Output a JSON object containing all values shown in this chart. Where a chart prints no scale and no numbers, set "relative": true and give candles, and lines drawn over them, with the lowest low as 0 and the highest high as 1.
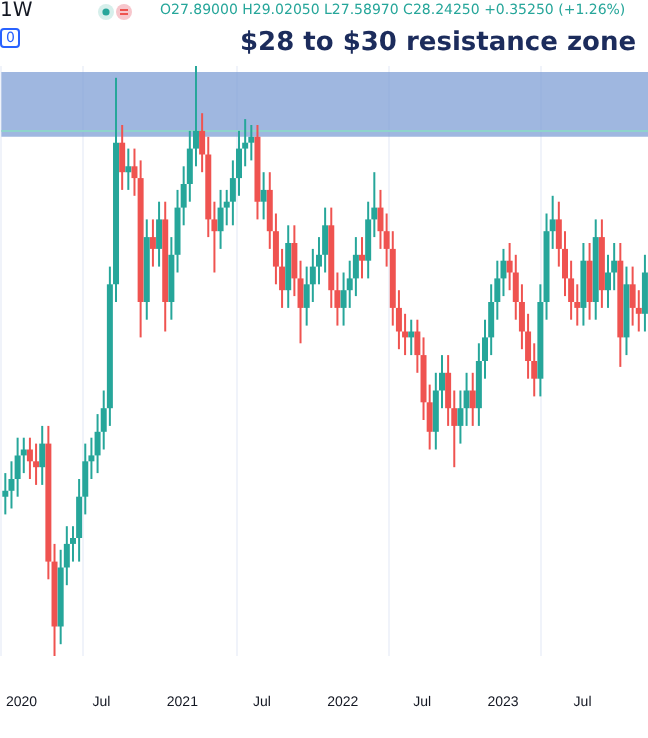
{
  "chart_data": {
    "type": "candlestick",
    "relative": true,
    "title": "$28 to $30 resistance zone",
    "annotations": [
      "1W",
      "O27.89000 H29.02050 L27.58970 C28.24250 +0.35250 (+1.26%)",
      "0"
    ],
    "x": [
      "2019-11-25",
      "2019-12-09",
      "2019-12-23",
      "2020-01-06",
      "2020-01-20",
      "2020-02-03",
      "2020-02-17",
      "2020-03-02",
      "2020-03-16",
      "2020-03-30",
      "2020-04-13",
      "2020-04-27",
      "2020-05-11",
      "2020-05-25",
      "2020-06-08",
      "2020-06-22",
      "2020-07-06",
      "2020-07-20",
      "2020-08-03",
      "2020-08-17",
      "2020-08-31",
      "2020-09-14",
      "2020-09-28",
      "2020-10-12",
      "2020-10-26",
      "2020-11-09",
      "2020-11-23",
      "2020-12-07",
      "2020-12-21",
      "2021-01-04",
      "2021-01-18",
      "2021-02-01",
      "2021-02-15",
      "2021-03-01",
      "2021-03-15",
      "2021-03-29",
      "2021-04-12",
      "2021-04-26",
      "2021-05-10",
      "2021-05-24",
      "2021-06-07",
      "2021-06-21",
      "2021-07-05",
      "2021-07-19",
      "2021-08-02",
      "2021-08-16",
      "2021-08-30",
      "2021-09-13",
      "2021-09-27",
      "2021-10-11",
      "2021-10-25",
      "2021-11-08",
      "2021-11-22",
      "2021-12-06",
      "2021-12-20",
      "2022-01-03",
      "2022-01-17",
      "2022-01-31",
      "2022-02-14",
      "2022-02-28",
      "2022-03-14",
      "2022-03-28",
      "2022-04-11",
      "2022-04-25",
      "2022-05-09",
      "2022-05-23",
      "2022-06-06",
      "2022-06-20",
      "2022-07-04",
      "2022-07-18",
      "2022-08-01",
      "2022-08-15",
      "2022-08-29",
      "2022-09-12",
      "2022-09-26",
      "2022-10-10",
      "2022-10-24",
      "2022-11-07",
      "2022-11-21",
      "2022-12-05",
      "2022-12-19",
      "2023-01-02",
      "2023-01-16",
      "2023-01-30",
      "2023-02-13",
      "2023-02-27",
      "2023-03-13",
      "2023-03-27",
      "2023-04-10",
      "2023-04-24",
      "2023-05-08",
      "2023-05-22",
      "2023-06-05",
      "2023-06-19",
      "2023-07-03",
      "2023-07-17",
      "2023-07-31",
      "2023-08-14",
      "2023-08-28",
      "2023-09-11",
      "2023-09-25",
      "2023-10-09",
      "2023-10-23",
      "2023-11-06",
      "2023-11-20"
    ],
    "ohlc": [
      [
        0.27,
        0.31,
        0.24,
        0.28
      ],
      [
        0.28,
        0.33,
        0.25,
        0.3
      ],
      [
        0.3,
        0.37,
        0.27,
        0.34
      ],
      [
        0.34,
        0.37,
        0.31,
        0.35
      ],
      [
        0.35,
        0.37,
        0.3,
        0.33
      ],
      [
        0.33,
        0.36,
        0.29,
        0.32
      ],
      [
        0.32,
        0.39,
        0.29,
        0.36
      ],
      [
        0.36,
        0.39,
        0.13,
        0.16
      ],
      [
        0.16,
        0.19,
        0,
        0.05
      ],
      [
        0.05,
        0.18,
        0.02,
        0.15
      ],
      [
        0.15,
        0.22,
        0.12,
        0.19
      ],
      [
        0.19,
        0.22,
        0.16,
        0.2
      ],
      [
        0.2,
        0.3,
        0.16,
        0.27
      ],
      [
        0.27,
        0.36,
        0.24,
        0.33
      ],
      [
        0.33,
        0.37,
        0.3,
        0.34
      ],
      [
        0.34,
        0.41,
        0.31,
        0.38
      ],
      [
        0.38,
        0.45,
        0.35,
        0.42
      ],
      [
        0.42,
        0.66,
        0.39,
        0.63
      ],
      [
        0.63,
        0.98,
        0.6,
        0.87
      ],
      [
        0.87,
        0.9,
        0.79,
        0.82
      ],
      [
        0.82,
        0.86,
        0.79,
        0.83
      ],
      [
        0.83,
        0.86,
        0.78,
        0.81
      ],
      [
        0.81,
        0.84,
        0.54,
        0.6
      ],
      [
        0.6,
        0.74,
        0.57,
        0.71
      ],
      [
        0.71,
        0.74,
        0.66,
        0.69
      ],
      [
        0.69,
        0.77,
        0.66,
        0.74
      ],
      [
        0.74,
        0.77,
        0.55,
        0.6
      ],
      [
        0.6,
        0.71,
        0.57,
        0.68
      ],
      [
        0.68,
        0.79,
        0.65,
        0.76
      ],
      [
        0.76,
        0.83,
        0.73,
        0.8
      ],
      [
        0.8,
        0.89,
        0.77,
        0.86
      ],
      [
        0.86,
        1,
        0.83,
        0.89
      ],
      [
        0.89,
        0.92,
        0.82,
        0.85
      ],
      [
        0.85,
        0.88,
        0.71,
        0.74
      ],
      [
        0.74,
        0.77,
        0.65,
        0.72
      ],
      [
        0.72,
        0.79,
        0.69,
        0.76
      ],
      [
        0.76,
        0.79,
        0.73,
        0.77
      ],
      [
        0.77,
        0.84,
        0.73,
        0.81
      ],
      [
        0.81,
        0.89,
        0.78,
        0.86
      ],
      [
        0.86,
        0.91,
        0.83,
        0.87
      ],
      [
        0.87,
        0.9,
        0.84,
        0.88
      ],
      [
        0.88,
        0.9,
        0.74,
        0.77
      ],
      [
        0.77,
        0.82,
        0.74,
        0.79
      ],
      [
        0.79,
        0.82,
        0.69,
        0.72
      ],
      [
        0.72,
        0.75,
        0.63,
        0.66
      ],
      [
        0.66,
        0.69,
        0.59,
        0.62
      ],
      [
        0.62,
        0.73,
        0.59,
        0.7
      ],
      [
        0.7,
        0.73,
        0.61,
        0.64
      ],
      [
        0.64,
        0.67,
        0.53,
        0.59
      ],
      [
        0.59,
        0.66,
        0.56,
        0.63
      ],
      [
        0.63,
        0.69,
        0.6,
        0.66
      ],
      [
        0.66,
        0.71,
        0.63,
        0.68
      ],
      [
        0.68,
        0.76,
        0.65,
        0.73
      ],
      [
        0.73,
        0.76,
        0.59,
        0.62
      ],
      [
        0.62,
        0.65,
        0.56,
        0.59
      ],
      [
        0.59,
        0.65,
        0.56,
        0.62
      ],
      [
        0.62,
        0.67,
        0.59,
        0.64
      ],
      [
        0.64,
        0.71,
        0.61,
        0.68
      ],
      [
        0.68,
        0.71,
        0.64,
        0.67
      ],
      [
        0.67,
        0.77,
        0.64,
        0.74
      ],
      [
        0.74,
        0.82,
        0.71,
        0.76
      ],
      [
        0.76,
        0.79,
        0.69,
        0.72
      ],
      [
        0.72,
        0.75,
        0.66,
        0.69
      ],
      [
        0.69,
        0.72,
        0.56,
        0.59
      ],
      [
        0.59,
        0.62,
        0.52,
        0.55
      ],
      [
        0.55,
        0.58,
        0.51,
        0.54
      ],
      [
        0.54,
        0.57,
        0.51,
        0.55
      ],
      [
        0.55,
        0.57,
        0.48,
        0.51
      ],
      [
        0.51,
        0.54,
        0.4,
        0.43
      ],
      [
        0.43,
        0.46,
        0.35,
        0.38
      ],
      [
        0.38,
        0.48,
        0.35,
        0.45
      ],
      [
        0.45,
        0.51,
        0.42,
        0.48
      ],
      [
        0.48,
        0.51,
        0.39,
        0.42
      ],
      [
        0.42,
        0.45,
        0.32,
        0.39
      ],
      [
        0.39,
        0.45,
        0.36,
        0.42
      ],
      [
        0.42,
        0.48,
        0.39,
        0.45
      ],
      [
        0.45,
        0.48,
        0.39,
        0.42
      ],
      [
        0.42,
        0.53,
        0.39,
        0.5
      ],
      [
        0.5,
        0.57,
        0.47,
        0.54
      ],
      [
        0.54,
        0.63,
        0.51,
        0.6
      ],
      [
        0.6,
        0.67,
        0.57,
        0.64
      ],
      [
        0.64,
        0.69,
        0.61,
        0.67
      ],
      [
        0.67,
        0.7,
        0.62,
        0.65
      ],
      [
        0.65,
        0.68,
        0.57,
        0.6
      ],
      [
        0.6,
        0.63,
        0.52,
        0.55
      ],
      [
        0.55,
        0.58,
        0.47,
        0.5
      ],
      [
        0.5,
        0.53,
        0.44,
        0.47
      ],
      [
        0.47,
        0.63,
        0.44,
        0.6
      ],
      [
        0.6,
        0.75,
        0.57,
        0.72
      ],
      [
        0.72,
        0.78,
        0.69,
        0.74
      ],
      [
        0.74,
        0.77,
        0.66,
        0.69
      ],
      [
        0.69,
        0.72,
        0.61,
        0.64
      ],
      [
        0.64,
        0.67,
        0.57,
        0.6
      ],
      [
        0.6,
        0.63,
        0.56,
        0.59
      ],
      [
        0.59,
        0.7,
        0.56,
        0.67
      ],
      [
        0.67,
        0.7,
        0.57,
        0.6
      ],
      [
        0.6,
        0.74,
        0.57,
        0.71
      ],
      [
        0.71,
        0.74,
        0.59,
        0.62
      ],
      [
        0.62,
        0.68,
        0.59,
        0.65
      ],
      [
        0.65,
        0.7,
        0.62,
        0.67
      ],
      [
        0.67,
        0.7,
        0.49,
        0.54
      ],
      [
        0.54,
        0.66,
        0.51,
        0.63
      ],
      [
        0.63,
        0.66,
        0.56,
        0.59
      ],
      [
        0.59,
        0.62,
        0.55,
        0.58
      ],
      [
        0.58,
        0.68,
        0.55,
        0.65
      ]
    ],
    "xlim": [
      "2019-11-16",
      "2023-11-27"
    ],
    "xticks": [
      {
        "value": "2020-01-01",
        "label": "2020"
      },
      {
        "value": "2020-07-01",
        "label": "Jul"
      },
      {
        "value": "2021-01-01",
        "label": "2021"
      },
      {
        "value": "2021-07-01",
        "label": "Jul"
      },
      {
        "value": "2022-01-01",
        "label": "2022"
      },
      {
        "value": "2022-07-01",
        "label": "Jul"
      },
      {
        "value": "2023-01-01",
        "label": "2023"
      },
      {
        "value": "2023-07-01",
        "label": "Jul"
      }
    ],
    "bands": [
      {
        "axis": "y",
        "from": 0.88,
        "to": 0.99,
        "color": "#7f9fd6"
      }
    ],
    "ref_lines": [
      {
        "axis": "y",
        "value": 0.89,
        "color": "#8fd3cc"
      }
    ],
    "grid": "x",
    "tick_labels": "x"
  }
}
